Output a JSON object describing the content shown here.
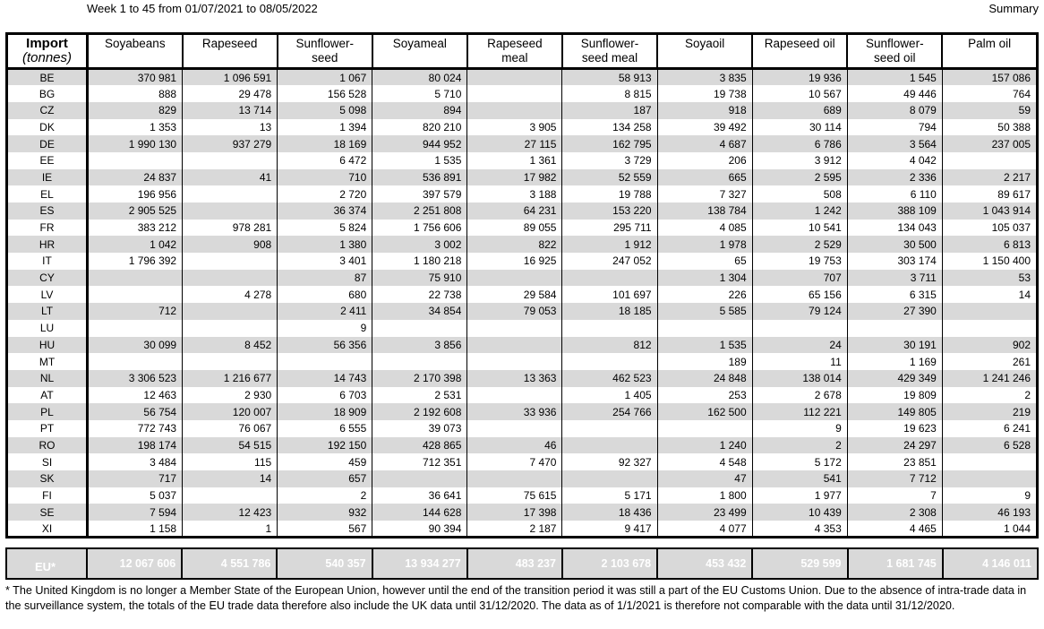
{
  "title": "Week 1 to 45 from 01/07/2021 to 08/05/2022",
  "summary_label": "Summary",
  "colors": {
    "stripe": "#d9d9d9",
    "total_bg": "#595959",
    "total_text": "#ffffff"
  },
  "table": {
    "row_header_title": "Import",
    "row_header_subtitle": "(tonnes)",
    "columns": [
      "Soyabeans",
      "Rapeseed",
      "Sunflower-\nseed",
      "Soyameal",
      "Rapeseed\nmeal",
      "Sunflower-\nseed meal",
      "Soyaoil",
      "Rapeseed oil",
      "Sunflower-\nseed oil",
      "Palm oil"
    ],
    "rows": [
      {
        "code": "BE",
        "values": [
          "370 981",
          "1 096 591",
          "1 067",
          "80 024",
          "",
          "58 913",
          "3 835",
          "19 936",
          "1 545",
          "157 086"
        ]
      },
      {
        "code": "BG",
        "values": [
          "888",
          "29 478",
          "156 528",
          "5 710",
          "",
          "8 815",
          "19 738",
          "10 567",
          "49 446",
          "764"
        ]
      },
      {
        "code": "CZ",
        "values": [
          "829",
          "13 714",
          "5 098",
          "894",
          "",
          "187",
          "918",
          "689",
          "8 079",
          "59"
        ]
      },
      {
        "code": "DK",
        "values": [
          "1 353",
          "13",
          "1 394",
          "820 210",
          "3 905",
          "134 258",
          "39 492",
          "30 114",
          "794",
          "50 388"
        ]
      },
      {
        "code": "DE",
        "values": [
          "1 990 130",
          "937 279",
          "18 169",
          "944 952",
          "27 115",
          "162 795",
          "4 687",
          "6 786",
          "3 564",
          "237 005"
        ]
      },
      {
        "code": "EE",
        "values": [
          "",
          "",
          "6 472",
          "1 535",
          "1 361",
          "3 729",
          "206",
          "3 912",
          "4 042",
          ""
        ]
      },
      {
        "code": "IE",
        "values": [
          "24 837",
          "41",
          "710",
          "536 891",
          "17 982",
          "52 559",
          "665",
          "2 595",
          "2 336",
          "2 217"
        ]
      },
      {
        "code": "EL",
        "values": [
          "196 956",
          "",
          "2 720",
          "397 579",
          "3 188",
          "19 788",
          "7 327",
          "508",
          "6 110",
          "89 617"
        ]
      },
      {
        "code": "ES",
        "values": [
          "2 905 525",
          "",
          "36 374",
          "2 251 808",
          "64 231",
          "153 220",
          "138 784",
          "1 242",
          "388 109",
          "1 043 914"
        ]
      },
      {
        "code": "FR",
        "values": [
          "383 212",
          "978 281",
          "5 824",
          "1 756 606",
          "89 055",
          "295 711",
          "4 085",
          "10 541",
          "134 043",
          "105 037"
        ]
      },
      {
        "code": "HR",
        "values": [
          "1 042",
          "908",
          "1 380",
          "3 002",
          "822",
          "1 912",
          "1 978",
          "2 529",
          "30 500",
          "6 813"
        ]
      },
      {
        "code": "IT",
        "values": [
          "1 796 392",
          "",
          "3 401",
          "1 180 218",
          "16 925",
          "247 052",
          "65",
          "19 753",
          "303 174",
          "1 150 400"
        ]
      },
      {
        "code": "CY",
        "values": [
          "",
          "",
          "87",
          "75 910",
          "",
          "",
          "1 304",
          "707",
          "3 711",
          "53"
        ]
      },
      {
        "code": "LV",
        "values": [
          "",
          "4 278",
          "680",
          "22 738",
          "29 584",
          "101 697",
          "226",
          "65 156",
          "6 315",
          "14"
        ]
      },
      {
        "code": "LT",
        "values": [
          "712",
          "",
          "2 411",
          "34 854",
          "79 053",
          "18 185",
          "5 585",
          "79 124",
          "27 390",
          ""
        ]
      },
      {
        "code": "LU",
        "values": [
          "",
          "",
          "9",
          "",
          "",
          "",
          "",
          "",
          "",
          ""
        ]
      },
      {
        "code": "HU",
        "values": [
          "30 099",
          "8 452",
          "56 356",
          "3 856",
          "",
          "812",
          "1 535",
          "24",
          "30 191",
          "902"
        ]
      },
      {
        "code": "MT",
        "values": [
          "",
          "",
          "",
          "",
          "",
          "",
          "189",
          "11",
          "1 169",
          "261"
        ]
      },
      {
        "code": "NL",
        "values": [
          "3 306 523",
          "1 216 677",
          "14 743",
          "2 170 398",
          "13 363",
          "462 523",
          "24 848",
          "138 014",
          "429 349",
          "1 241 246"
        ]
      },
      {
        "code": "AT",
        "values": [
          "12 463",
          "2 930",
          "6 703",
          "2 531",
          "",
          "1 405",
          "253",
          "2 678",
          "19 809",
          "2"
        ]
      },
      {
        "code": "PL",
        "values": [
          "56 754",
          "120 007",
          "18 909",
          "2 192 608",
          "33 936",
          "254 766",
          "162 500",
          "112 221",
          "149 805",
          "219"
        ]
      },
      {
        "code": "PT",
        "values": [
          "772 743",
          "76 067",
          "6 555",
          "39 073",
          "",
          "",
          "",
          "9",
          "19 623",
          "6 241"
        ]
      },
      {
        "code": "RO",
        "values": [
          "198 174",
          "54 515",
          "192 150",
          "428 865",
          "46",
          "",
          "1 240",
          "2",
          "24 297",
          "6 528"
        ]
      },
      {
        "code": "SI",
        "values": [
          "3 484",
          "115",
          "459",
          "712 351",
          "7 470",
          "92 327",
          "4 548",
          "5 172",
          "23 851",
          ""
        ]
      },
      {
        "code": "SK",
        "values": [
          "717",
          "14",
          "657",
          "",
          "",
          "",
          "47",
          "541",
          "7 712",
          ""
        ]
      },
      {
        "code": "FI",
        "values": [
          "5 037",
          "",
          "2",
          "36 641",
          "75 615",
          "5 171",
          "1 800",
          "1 977",
          "7",
          "9"
        ]
      },
      {
        "code": "SE",
        "values": [
          "7 594",
          "12 423",
          "932",
          "144 628",
          "17 398",
          "18 436",
          "23 499",
          "10 439",
          "2 308",
          "46 193"
        ]
      },
      {
        "code": "XI",
        "values": [
          "1 158",
          "1",
          "567",
          "90 394",
          "2 187",
          "9 417",
          "4 077",
          "4 353",
          "4 465",
          "1 044"
        ]
      }
    ],
    "total": {
      "label": "EU*",
      "values": [
        "12 067 606",
        "4 551 786",
        "540 357",
        "13 934 277",
        "483 237",
        "2 103 678",
        "453 432",
        "529 599",
        "1 681 745",
        "4 146 011"
      ]
    }
  },
  "footnote": "* The United Kingdom is no longer a Member State of the European Union, however until the end of the transition period it was still a part of the EU Customs Union. Due to the absence of intra-trade data in the surveillance system, the totals of the EU trade data  therefore also include the UK data until 31/12/2020. The data as of 1/1/2021 is therefore not comparable with the data until 31/12/2020."
}
